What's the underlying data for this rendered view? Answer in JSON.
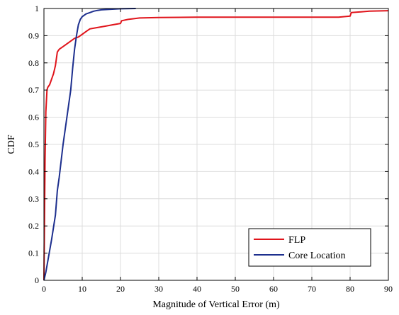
{
  "chart_data": {
    "type": "line",
    "title": "",
    "xlabel": "Magnitude of Vertical Error (m)",
    "ylabel": "CDF",
    "xlim": [
      0,
      90
    ],
    "ylim": [
      0,
      1
    ],
    "xticks": [
      "0",
      "10",
      "20",
      "30",
      "40",
      "50",
      "60",
      "70",
      "80",
      "90"
    ],
    "yticks": [
      "0",
      "0.1",
      "0.2",
      "0.3",
      "0.4",
      "0.5",
      "0.6",
      "0.7",
      "0.8",
      "0.9",
      "1"
    ],
    "grid": true,
    "legend_position": "bottom-right",
    "series": [
      {
        "name": "FLP",
        "color": "#e0141b",
        "x": [
          0,
          0.3,
          0.5,
          0.8,
          1.0,
          1.5,
          2.0,
          2.5,
          3.0,
          3.5,
          4.0,
          5.0,
          6.0,
          7.0,
          8.0,
          9.0,
          10.0,
          11.0,
          12.0,
          14.0,
          16.0,
          18.0,
          20.0,
          20.3,
          22.0,
          25.0,
          30.0,
          40.0,
          50.0,
          60.0,
          70.0,
          77.0,
          80.0,
          80.3,
          85.0,
          90.0
        ],
        "y": [
          0,
          0.45,
          0.62,
          0.7,
          0.71,
          0.72,
          0.74,
          0.76,
          0.79,
          0.84,
          0.85,
          0.86,
          0.87,
          0.88,
          0.89,
          0.895,
          0.905,
          0.915,
          0.925,
          0.93,
          0.935,
          0.94,
          0.945,
          0.955,
          0.96,
          0.965,
          0.967,
          0.968,
          0.968,
          0.968,
          0.968,
          0.968,
          0.972,
          0.985,
          0.99,
          0.992
        ]
      },
      {
        "name": "Core Location",
        "color": "#1d2f8e",
        "x": [
          0,
          0.5,
          1.0,
          2.0,
          3.0,
          3.5,
          4.0,
          5.0,
          6.0,
          7.0,
          7.5,
          8.0,
          8.5,
          9.0,
          9.5,
          10.0,
          11.0,
          12.0,
          13.0,
          14.0,
          15.0,
          17.0,
          20.0,
          24.0
        ],
        "y": [
          0,
          0.03,
          0.07,
          0.15,
          0.24,
          0.33,
          0.38,
          0.5,
          0.6,
          0.7,
          0.78,
          0.85,
          0.9,
          0.94,
          0.96,
          0.97,
          0.98,
          0.985,
          0.99,
          0.993,
          0.995,
          0.997,
          0.999,
          1.0
        ]
      }
    ]
  }
}
